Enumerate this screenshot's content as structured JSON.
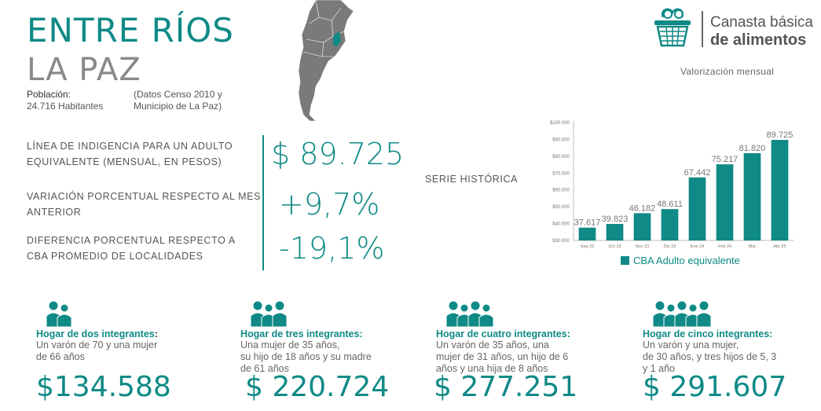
{
  "header": {
    "province": "ENTRE RÍOS",
    "locality": "LA PAZ",
    "population_label": "Población:",
    "population_value": "24.716 Habitantes",
    "census_line1": "(Datos Censo 2010 y",
    "census_line2": "Municipio de La Paz)"
  },
  "logo": {
    "line1": "Canasta básica",
    "line2": "de alimentos",
    "subtitle": "Valorización mensual"
  },
  "indicators": [
    {
      "label_line1": "LÍNEA DE INDIGENCIA PARA UN ADULTO",
      "label_line2": "EQUIVALENTE (MENSUAL, EN PESOS)",
      "value": "$ 89.725"
    },
    {
      "label_line1": "VARIACIÓN PORCENTUAL RESPECTO AL MES",
      "label_line2": "ANTERIOR",
      "value": "+9,7%"
    },
    {
      "label_line1": "DIFERENCIA PORCENTUAL RESPECTO A",
      "label_line2": "CBA PROMEDIO DE LOCALIDADES",
      "value": "-19,1%"
    }
  ],
  "serie_label": "SERIE HISTÓRICA",
  "chart_data": {
    "type": "bar",
    "categories": [
      "Sep 23",
      "Oct 23",
      "Nov 23",
      "Dic 23",
      "Ene 24",
      "Feb 24",
      "Mar",
      "Abr 25"
    ],
    "series": [
      {
        "name": "CBA Adulto equivalente",
        "values": [
          37617,
          39823,
          46182,
          48611,
          67442,
          75217,
          81820,
          89725
        ]
      }
    ],
    "data_labels": [
      "37.617",
      "39.823",
      "46.182",
      "48.611",
      "67.442",
      "75.217",
      "81.820",
      "89.725"
    ],
    "yticks": [
      "$100.000",
      "$90.000",
      "$80.000",
      "$70.000",
      "$60.000",
      "$50.000",
      "$40.000",
      "$30.000"
    ],
    "ylim": [
      30000,
      100000
    ],
    "grid": false,
    "legend": "bottom",
    "color": "#0f8a86"
  },
  "households": [
    {
      "title": "Hogar de dos integrantes",
      "title_suffix": ":",
      "desc": [
        "Un varón de 70 y una mujer",
        "de 66 años"
      ],
      "value": "$134.588",
      "people": 2
    },
    {
      "title": "Hogar de tres integrantes:",
      "title_suffix": "",
      "desc": [
        "Una mujer de 35 años,",
        "su hijo de 18 años y su madre",
        "de 61 años"
      ],
      "value": "$ 220.724",
      "people": 3
    },
    {
      "title": "Hogar de cuatro integrantes:",
      "title_suffix": "",
      "desc": [
        "Un varón de 35 años, una",
        "mujer de 31 años, un hijo de 6",
        "años y una hija de 8 años"
      ],
      "value": "$ 277.251",
      "people": 4
    },
    {
      "title": "Hogar de cinco integrantes:",
      "title_suffix": "",
      "desc": [
        "Un varón y una mujer,",
        "de 30 años, y tres hijos de 5, 3",
        "y 1 año"
      ],
      "value": "$ 291.607",
      "people": 5
    }
  ]
}
